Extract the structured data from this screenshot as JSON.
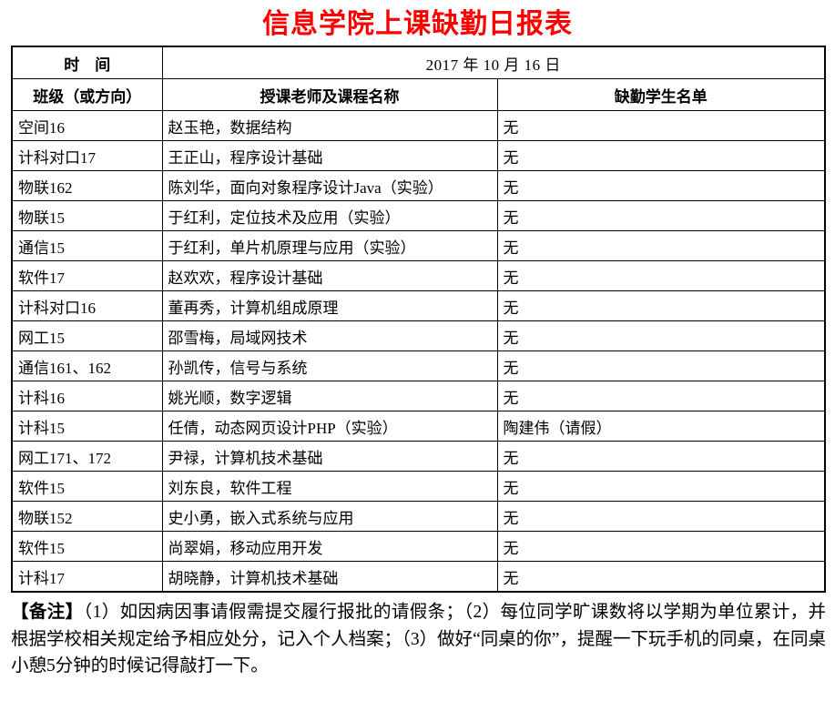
{
  "title": "信息学院上课缺勤日报表",
  "colors": {
    "title_red": "#ff0000",
    "border": "#000000",
    "text": "#000000",
    "background": "#ffffff"
  },
  "table": {
    "time_label": "时　间",
    "date_value": "2017 年 10 月 16 日",
    "headers": [
      "班级（或方向）",
      "授课老师及课程名称",
      "缺勤学生名单"
    ],
    "rows": [
      [
        "空间16",
        "赵玉艳，数据结构",
        "无"
      ],
      [
        "计科对口17",
        "王正山，程序设计基础",
        "无"
      ],
      [
        "物联162",
        "陈刘华，面向对象程序设计Java（实验）",
        "无"
      ],
      [
        "物联15",
        "于红利，定位技术及应用（实验）",
        "无"
      ],
      [
        "通信15",
        "于红利，单片机原理与应用（实验）",
        "无"
      ],
      [
        "软件17",
        "赵欢欢，程序设计基础",
        "无"
      ],
      [
        "计科对口16",
        "董再秀，计算机组成原理",
        "无"
      ],
      [
        "网工15",
        "邵雪梅，局域网技术",
        "无"
      ],
      [
        "通信161、162",
        "孙凯传，信号与系统",
        "无"
      ],
      [
        "计科16",
        "姚光顺，数字逻辑",
        "无"
      ],
      [
        "计科15",
        "任倩，动态网页设计PHP（实验）",
        "陶建伟（请假）"
      ],
      [
        "网工171、172",
        "尹禄，计算机技术基础",
        "无"
      ],
      [
        "软件15",
        "刘东良，软件工程",
        "无"
      ],
      [
        "物联152",
        "史小勇，嵌入式系统与应用",
        "无"
      ],
      [
        "软件15",
        "尚翠娟，移动应用开发",
        "无"
      ],
      [
        "计科17",
        "胡晓静，计算机技术基础",
        "无"
      ]
    ]
  },
  "remark": {
    "label": "【备注】",
    "text": "（1）如因病因事请假需提交履行报批的请假条；（2）每位同学旷课数将以学期为单位累计，并根据学校相关规定给予相应处分，记入个人档案；（3）做好“同桌的你”，提醒一下玩手机的同桌，在同桌小憩5分钟的时候记得敲打一下。"
  }
}
